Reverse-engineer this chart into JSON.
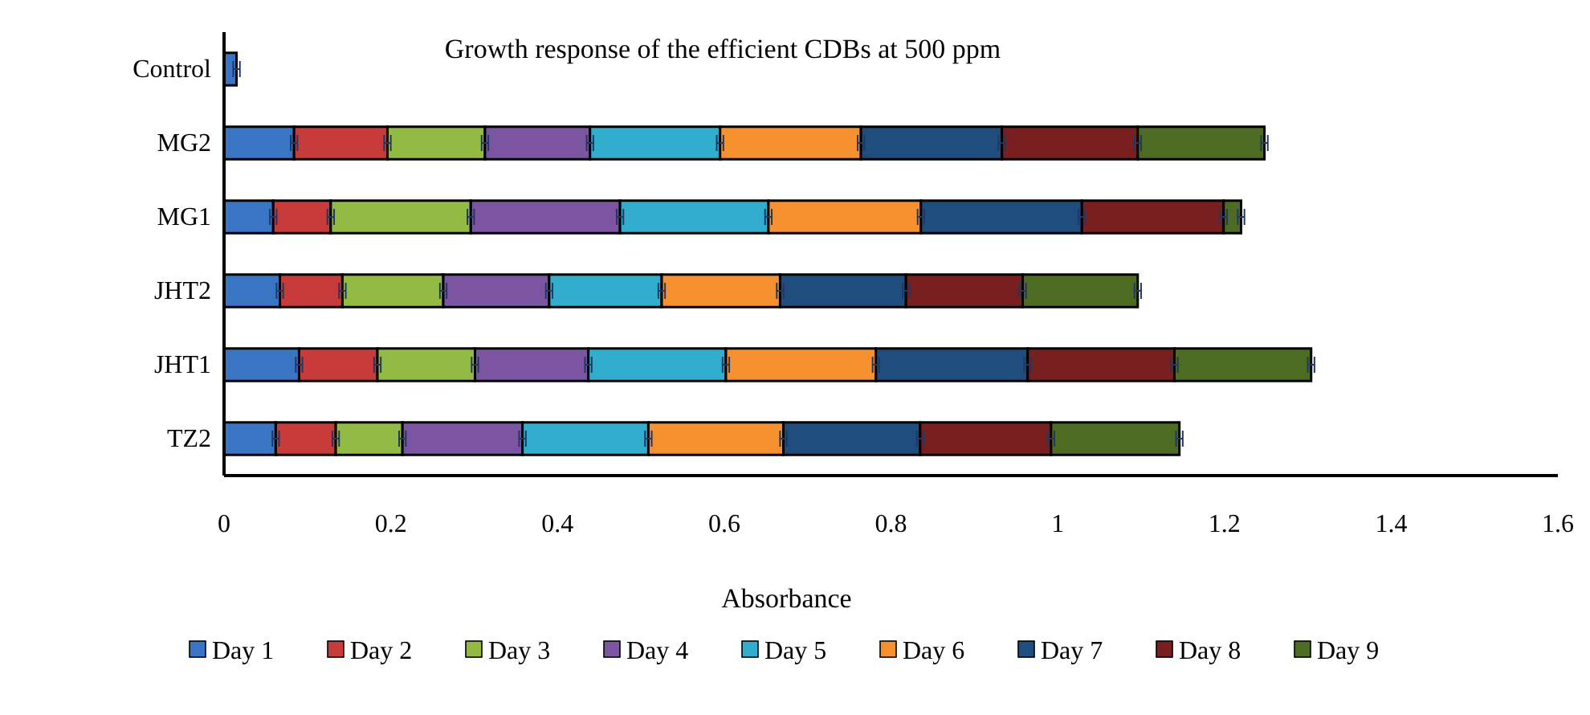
{
  "chart_data": {
    "type": "bar",
    "orientation": "horizontal",
    "stacked": true,
    "title": "Growth response of the efficient CDBs at 500 ppm",
    "xlabel": "Absorbance",
    "categories": [
      "Control",
      "MG2",
      "MG1",
      "JHT2",
      "JHT1",
      "TZ2"
    ],
    "series": [
      {
        "name": "Day 1",
        "color": "#3a75c4",
        "values": [
          0.015,
          0.084,
          0.059,
          0.067,
          0.09,
          0.062
        ],
        "errors": [
          0.004,
          0.004,
          0.004,
          0.004,
          0.004,
          0.004
        ]
      },
      {
        "name": "Day 2",
        "color": "#c83b3b",
        "values": [
          0,
          0.112,
          0.069,
          0.075,
          0.094,
          0.072
        ],
        "errors": [
          null,
          0.004,
          0.004,
          0.004,
          0.004,
          0.004
        ]
      },
      {
        "name": "Day 3",
        "color": "#93bb44",
        "values": [
          0,
          0.117,
          0.168,
          0.121,
          0.117,
          0.08
        ],
        "errors": [
          null,
          0.004,
          0.004,
          0.004,
          0.004,
          0.004
        ]
      },
      {
        "name": "Day 4",
        "color": "#7b55a2",
        "values": [
          0,
          0.126,
          0.179,
          0.127,
          0.136,
          0.144
        ],
        "errors": [
          null,
          0.004,
          0.004,
          0.004,
          0.004,
          0.004
        ]
      },
      {
        "name": "Day 5",
        "color": "#31aecd",
        "values": [
          0,
          0.156,
          0.178,
          0.135,
          0.165,
          0.151
        ],
        "errors": [
          null,
          0.004,
          0.004,
          0.004,
          0.004,
          0.004
        ]
      },
      {
        "name": "Day 6",
        "color": "#f7912f",
        "values": [
          0,
          0.169,
          0.183,
          0.142,
          0.18,
          0.162
        ],
        "errors": [
          null,
          0.004,
          0.004,
          0.004,
          0.004,
          0.004
        ]
      },
      {
        "name": "Day 7",
        "color": "#1f4e7e",
        "values": [
          0,
          0.169,
          0.193,
          0.151,
          0.182,
          0.164
        ],
        "errors": [
          null,
          0.004,
          0.004,
          0.004,
          0.004,
          0.004
        ]
      },
      {
        "name": "Day 8",
        "color": "#7a1f1f",
        "values": [
          0,
          0.163,
          0.17,
          0.14,
          0.176,
          0.157
        ],
        "errors": [
          null,
          0.004,
          0.004,
          0.004,
          0.004,
          0.004
        ]
      },
      {
        "name": "Day 9",
        "color": "#4e6b22",
        "values": [
          0,
          0.152,
          0.021,
          0.138,
          0.164,
          0.154
        ],
        "errors": [
          null,
          0.004,
          0.004,
          0.004,
          0.004,
          0.004
        ]
      }
    ],
    "xlim": [
      0,
      1.6
    ],
    "xticks": [
      0,
      0.2,
      0.4,
      0.6,
      0.8,
      1,
      1.2,
      1.4,
      1.6
    ],
    "grid": false,
    "legend": "bottom"
  }
}
